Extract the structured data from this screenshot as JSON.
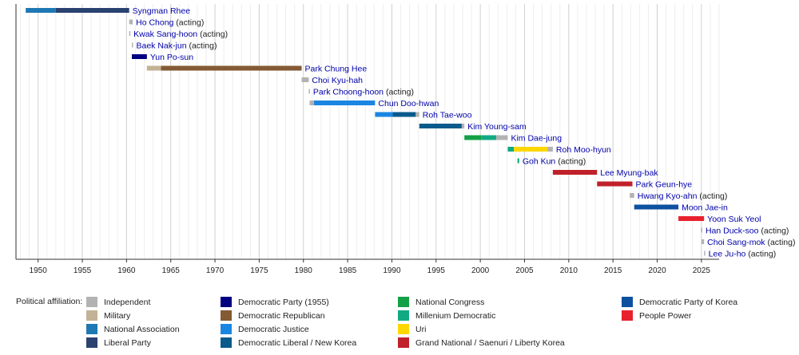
{
  "chart_data": {
    "type": "timeline",
    "title": "",
    "xlabel": "",
    "ylabel": "",
    "xlim": [
      1947.5,
      2027
    ],
    "xticks": [
      1950,
      1955,
      1960,
      1965,
      1970,
      1975,
      1980,
      1985,
      1990,
      1995,
      2000,
      2005,
      2010,
      2015,
      2020,
      2025
    ],
    "grid": "vertical",
    "legend_title": "Political affiliation:",
    "legend_position": "bottom",
    "parties": [
      {
        "name": "Independent",
        "color": "#b3b3b3"
      },
      {
        "name": "Military",
        "color": "#c4b296"
      },
      {
        "name": "National Association",
        "color": "#1e78b4"
      },
      {
        "name": "Liberal Party",
        "color": "#2a4270"
      },
      {
        "name": "Democratic Party (1955)",
        "color": "#000080"
      },
      {
        "name": "Democratic Republican",
        "color": "#845a34"
      },
      {
        "name": "Democratic Justice",
        "color": "#1a86e2"
      },
      {
        "name": "Democratic Liberal / New Korea",
        "color": "#0a5a8c"
      },
      {
        "name": "National Congress",
        "color": "#14a046"
      },
      {
        "name": "Millenium Democratic",
        "color": "#12aa82"
      },
      {
        "name": "Uri",
        "color": "#ffd700"
      },
      {
        "name": "Grand National / Saenuri / Liberty Korea",
        "color": "#c0202a"
      },
      {
        "name": "Democratic Party of Korea",
        "color": "#0d50a0"
      },
      {
        "name": "People Power",
        "color": "#e8202e"
      }
    ],
    "rows": [
      {
        "name": "Syngman Rhee",
        "suffix": "",
        "segments": [
          {
            "start": 1948.6,
            "end": 1952.0,
            "party": 2
          },
          {
            "start": 1952.0,
            "end": 1960.3,
            "party": 3
          }
        ]
      },
      {
        "name": "Ho Chong",
        "suffix": "(acting)",
        "segments": [
          {
            "start": 1960.3,
            "end": 1960.7,
            "party": 0
          }
        ]
      },
      {
        "name": "Kwak Sang-hoon",
        "suffix": "(acting)",
        "segments": [
          {
            "start": 1960.3,
            "end": 1960.4,
            "party": 0
          }
        ]
      },
      {
        "name": "Baek Nak-jun",
        "suffix": "(acting)",
        "segments": [
          {
            "start": 1960.6,
            "end": 1960.7,
            "party": 0
          }
        ]
      },
      {
        "name": "Yun Po-sun",
        "suffix": "",
        "segments": [
          {
            "start": 1960.6,
            "end": 1962.3,
            "party": 4
          }
        ]
      },
      {
        "name": "Park Chung Hee",
        "suffix": "",
        "segments": [
          {
            "start": 1962.3,
            "end": 1963.9,
            "party": 1
          },
          {
            "start": 1963.9,
            "end": 1979.8,
            "party": 5
          }
        ]
      },
      {
        "name": "Choi Kyu-hah",
        "suffix": "",
        "segments": [
          {
            "start": 1979.8,
            "end": 1980.6,
            "party": 0
          }
        ]
      },
      {
        "name": "Park Choong-hoon",
        "suffix": "(acting)",
        "segments": [
          {
            "start": 1980.6,
            "end": 1980.7,
            "party": 0
          }
        ]
      },
      {
        "name": "Chun Doo-hwan",
        "suffix": "",
        "segments": [
          {
            "start": 1980.7,
            "end": 1981.2,
            "party": 0
          },
          {
            "start": 1981.2,
            "end": 1988.1,
            "party": 6
          }
        ]
      },
      {
        "name": "Roh Tae-woo",
        "suffix": "",
        "segments": [
          {
            "start": 1988.1,
            "end": 1990.1,
            "party": 6
          },
          {
            "start": 1990.1,
            "end": 1992.7,
            "party": 7
          },
          {
            "start": 1992.7,
            "end": 1993.1,
            "party": 0
          }
        ]
      },
      {
        "name": "Kim Young-sam",
        "suffix": "",
        "segments": [
          {
            "start": 1993.1,
            "end": 1997.9,
            "party": 7
          },
          {
            "start": 1997.9,
            "end": 1998.2,
            "party": 0
          }
        ]
      },
      {
        "name": "Kim Dae-jung",
        "suffix": "",
        "segments": [
          {
            "start": 1998.2,
            "end": 2000.1,
            "party": 8
          },
          {
            "start": 2000.1,
            "end": 2001.8,
            "party": 9
          },
          {
            "start": 2001.8,
            "end": 2003.1,
            "party": 0
          }
        ]
      },
      {
        "name": "Roh Moo-hyun",
        "suffix": "",
        "segments": [
          {
            "start": 2003.1,
            "end": 2003.8,
            "party": 9
          },
          {
            "start": 2003.8,
            "end": 2007.6,
            "party": 10
          },
          {
            "start": 2007.6,
            "end": 2008.2,
            "party": 0
          }
        ]
      },
      {
        "name": "Goh Kun",
        "suffix": "(acting)",
        "segments": [
          {
            "start": 2004.2,
            "end": 2004.4,
            "party": 9
          }
        ]
      },
      {
        "name": "Lee Myung-bak",
        "suffix": "",
        "segments": [
          {
            "start": 2008.2,
            "end": 2013.2,
            "party": 11
          }
        ]
      },
      {
        "name": "Park Geun-hye",
        "suffix": "",
        "segments": [
          {
            "start": 2013.2,
            "end": 2017.2,
            "party": 11
          }
        ]
      },
      {
        "name": "Hwang Kyo-ahn",
        "suffix": "(acting)",
        "segments": [
          {
            "start": 2016.9,
            "end": 2017.4,
            "party": 0
          }
        ]
      },
      {
        "name": "Moon Jae-in",
        "suffix": "",
        "segments": [
          {
            "start": 2017.4,
            "end": 2022.4,
            "party": 12
          }
        ]
      },
      {
        "name": "Yoon Suk Yeol",
        "suffix": "",
        "segments": [
          {
            "start": 2022.4,
            "end": 2025.3,
            "party": 13
          }
        ]
      },
      {
        "name": "Han Duck-soo",
        "suffix": "(acting)",
        "segments": [
          {
            "start": 2024.95,
            "end": 2025.1,
            "party": 0
          }
        ]
      },
      {
        "name": "Choi Sang-mok",
        "suffix": "(acting)",
        "segments": [
          {
            "start": 2025.0,
            "end": 2025.3,
            "party": 0
          }
        ]
      },
      {
        "name": "Lee Ju-ho",
        "suffix": "(acting)",
        "segments": [
          {
            "start": 2025.3,
            "end": 2025.4,
            "party": 0
          }
        ]
      }
    ]
  }
}
